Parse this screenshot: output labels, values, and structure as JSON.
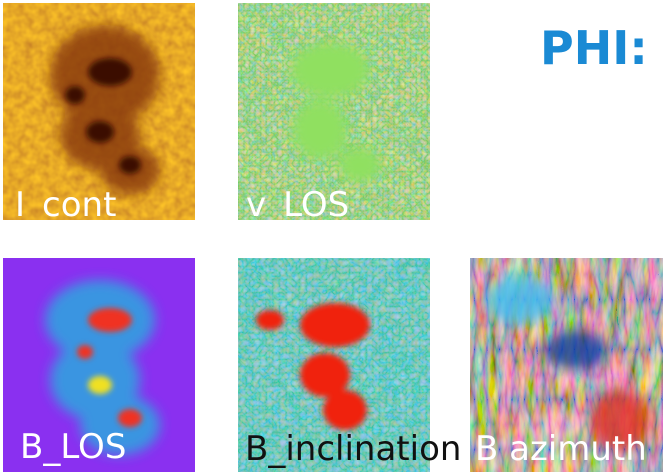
{
  "title": "PHI:",
  "panels": [
    {
      "label": "I_cont"
    },
    {
      "label": "v_LOS"
    },
    {
      "label": "B_LOS"
    },
    {
      "label": "B_inclination"
    },
    {
      "label": "B azimuth"
    }
  ]
}
